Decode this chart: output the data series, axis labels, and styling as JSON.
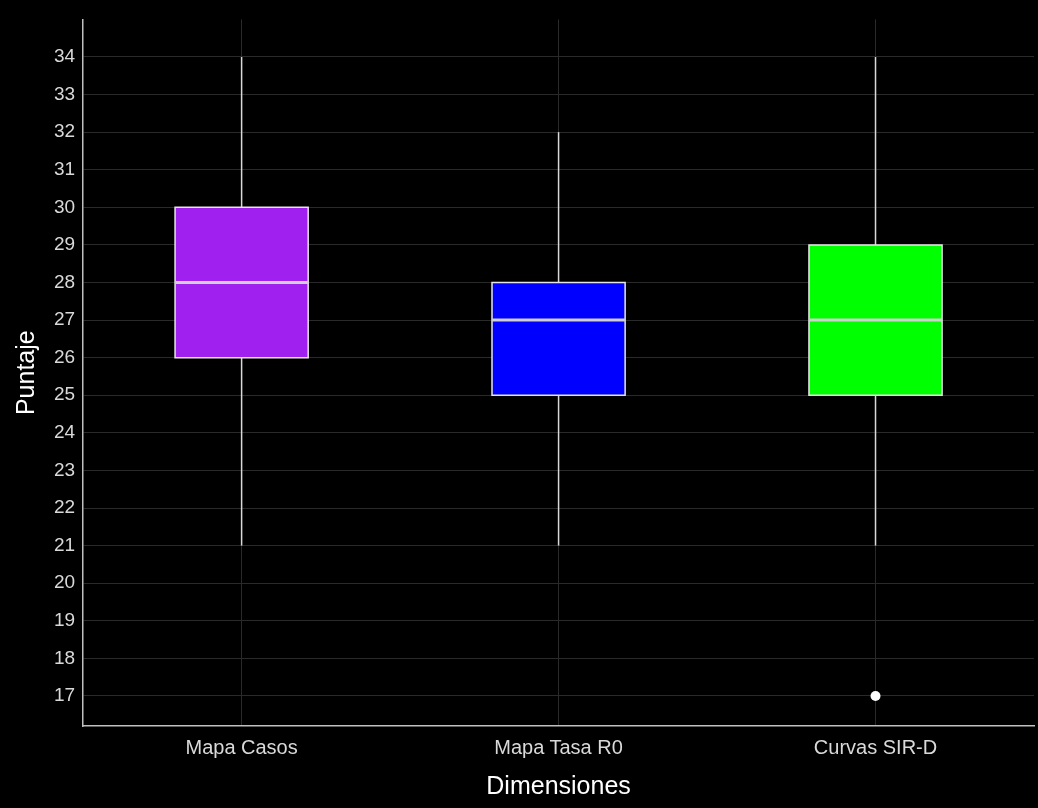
{
  "chart_data": {
    "type": "box",
    "xlabel": "Dimensiones",
    "ylabel": "Puntaje",
    "categories": [
      "Mapa Casos",
      "Mapa Tasa R0",
      "Curvas SIR-D"
    ],
    "boxes": [
      {
        "low": 21,
        "q1": 26,
        "median": 28,
        "q3": 30,
        "high": 34
      },
      {
        "low": 21,
        "q1": 25,
        "median": 27,
        "q3": 28,
        "high": 32
      },
      {
        "low": 21,
        "q1": 25,
        "median": 27,
        "q3": 29,
        "high": 34,
        "outliers": [
          17
        ]
      }
    ],
    "colors": [
      "#a020f0",
      "#0000ff",
      "#00ff00"
    ],
    "ylim": [
      16.2,
      35
    ],
    "yticks": [
      17,
      18,
      19,
      20,
      21,
      22,
      23,
      24,
      25,
      26,
      27,
      28,
      29,
      30,
      31,
      32,
      33,
      34
    ],
    "grid": true
  }
}
